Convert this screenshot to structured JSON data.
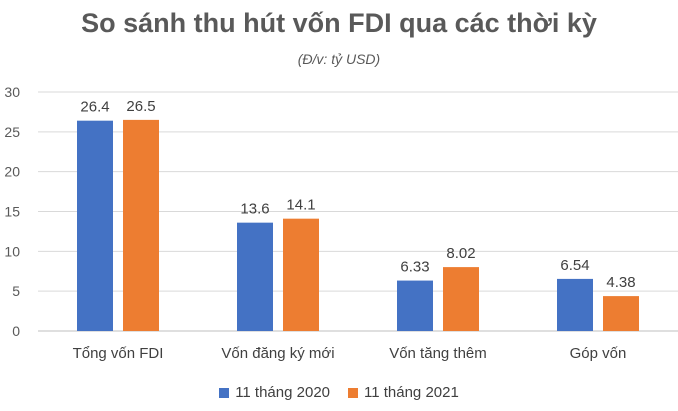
{
  "chart_data": {
    "type": "bar",
    "title": "So sánh thu hút vốn FDI qua các thời kỳ",
    "subtitle": "(Đ/v: tỷ USD)",
    "categories": [
      "Tổng vốn FDI",
      "Vốn đăng ký mới",
      "Vốn tăng thêm",
      "Góp vốn"
    ],
    "series": [
      {
        "name": "11 tháng 2020",
        "color": "#4472C4",
        "values": [
          26.4,
          13.6,
          6.33,
          6.54
        ]
      },
      {
        "name": "11 tháng 2021",
        "color": "#ED7D31",
        "values": [
          26.5,
          14.1,
          8.02,
          4.38
        ]
      }
    ],
    "yticks": [
      0,
      5,
      10,
      15,
      20,
      25,
      30
    ],
    "ylim": [
      0,
      30
    ],
    "grid": true,
    "legend": "bottom"
  }
}
